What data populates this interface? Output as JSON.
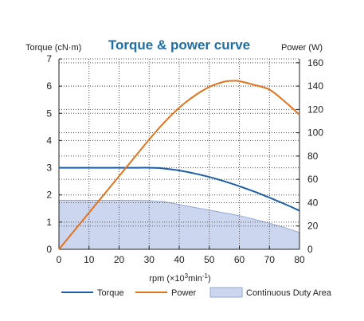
{
  "chart_data": {
    "type": "line",
    "title": "Torque & power curve",
    "y_left_label": "Torque (cN·m)",
    "y_right_label": "Power (W)",
    "xlabel_main": "rpm (×10",
    "xlabel_sup": "3",
    "xlabel_tail": "min",
    "xlabel_sup2": "-1",
    "xlabel_close": ")",
    "x_ticks": [
      0,
      10,
      20,
      30,
      40,
      50,
      60,
      70,
      80
    ],
    "y_left_ticks": [
      0,
      1,
      2,
      3,
      4,
      5,
      6,
      7
    ],
    "y_right_ticks": [
      0,
      20,
      40,
      60,
      80,
      100,
      120,
      140,
      160
    ],
    "xlim": [
      0,
      80
    ],
    "ylim_left": [
      0,
      7
    ],
    "ylim_right": [
      0,
      163.3
    ],
    "grid": true,
    "legend_placement": "bottom",
    "colors": {
      "torque": "#1c5fa8",
      "power": "#e2731e",
      "area_fill": "#ccd6ee",
      "area_edge": "#93a8d2",
      "title": "#1c6ea4",
      "grid": "#555555",
      "axis": "#222222"
    },
    "series": [
      {
        "name": "Torque",
        "axis": "left",
        "x": [
          0,
          5,
          10,
          15,
          20,
          25,
          30,
          33,
          35,
          40,
          45,
          50,
          55,
          60,
          65,
          70,
          75,
          80
        ],
        "y": [
          3.0,
          3.0,
          3.0,
          3.0,
          3.0,
          3.0,
          3.0,
          2.99,
          2.97,
          2.9,
          2.79,
          2.66,
          2.5,
          2.32,
          2.12,
          1.9,
          1.67,
          1.42
        ]
      },
      {
        "name": "Power",
        "axis": "right",
        "x": [
          0,
          5,
          10,
          15,
          20,
          25,
          30,
          35,
          40,
          45,
          50,
          55,
          58,
          60,
          65,
          70,
          75,
          80
        ],
        "y": [
          0,
          15.7,
          31.4,
          47.1,
          62.8,
          78.5,
          94.2,
          108.8,
          121.5,
          131.5,
          139.3,
          143.8,
          144.5,
          144.2,
          141.0,
          137.0,
          127.0,
          115.5
        ]
      },
      {
        "name": "Continuous Duty Area",
        "type": "area",
        "axis": "left",
        "x": [
          0,
          10,
          20,
          25,
          30,
          35,
          40,
          45,
          50,
          55,
          60,
          65,
          70,
          75,
          80
        ],
        "y": [
          1.8,
          1.8,
          1.8,
          1.8,
          1.79,
          1.75,
          1.65,
          1.54,
          1.44,
          1.34,
          1.24,
          1.1,
          0.96,
          0.8,
          0.62
        ]
      }
    ]
  }
}
